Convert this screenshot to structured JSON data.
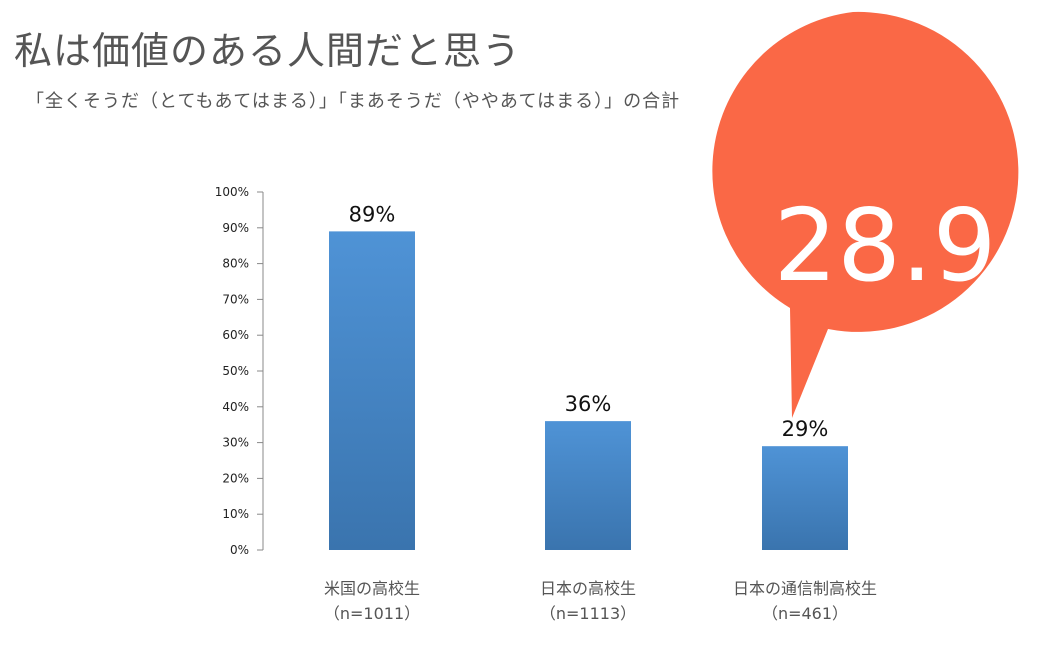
{
  "title": "私は価値のある人間だと思う",
  "subtitle": "「全くそうだ（とてもあてはまる）」「まあそうだ（ややあてはまる）」の合計",
  "callout": {
    "value": "28.9",
    "unit": "%",
    "color": "#fa6846"
  },
  "colors": {
    "bar_top": "#4f93d6",
    "bar_bottom": "#3a74ae",
    "text": "#555555"
  },
  "chart_data": {
    "type": "bar",
    "categories": [
      "米国の高校生",
      "日本の高校生",
      "日本の通信制高校生"
    ],
    "category_notes": [
      "（n=1011）",
      "（n=1113）",
      "（n=461）"
    ],
    "values": [
      89,
      36,
      29
    ],
    "data_labels": [
      "89%",
      "36%",
      "29%"
    ],
    "ylim": [
      0,
      100
    ],
    "yticks": [
      "0%",
      "10%",
      "20%",
      "30%",
      "40%",
      "50%",
      "60%",
      "70%",
      "80%",
      "90%",
      "100%"
    ],
    "grid": false,
    "legend": "none"
  }
}
